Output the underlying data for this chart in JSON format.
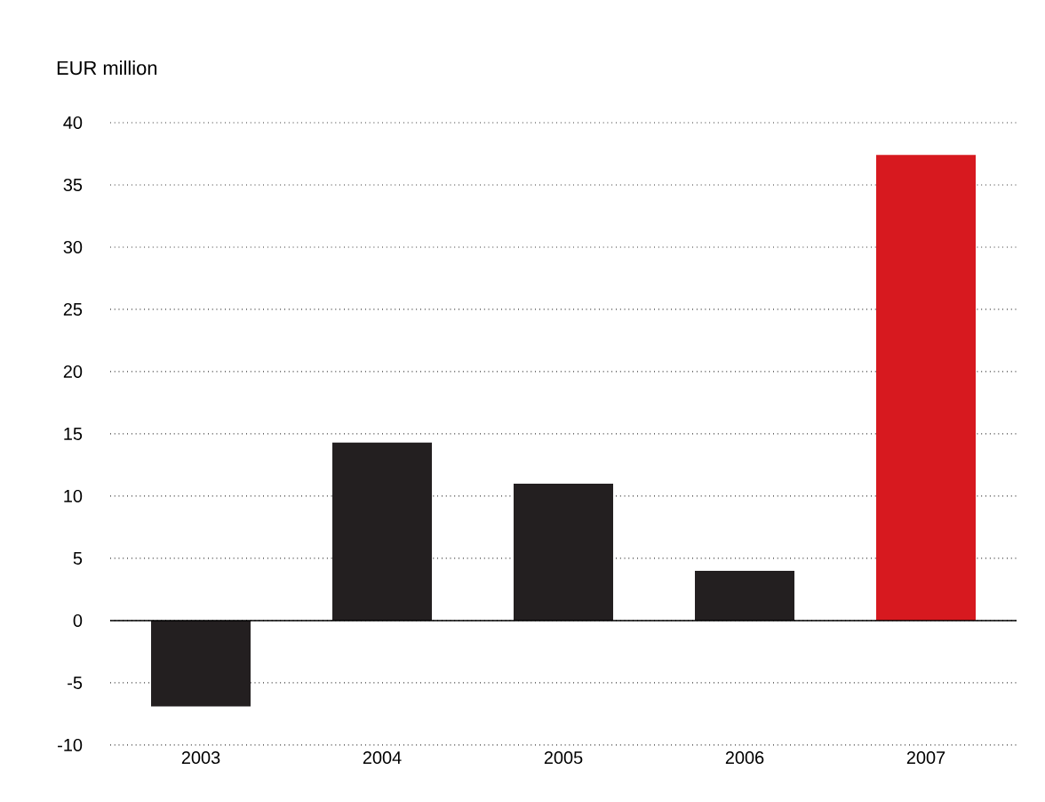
{
  "chart_data": {
    "type": "bar",
    "ylabel": "EUR million",
    "categories": [
      "2003",
      "2004",
      "2005",
      "2006",
      "2007"
    ],
    "values": [
      -6.9,
      14.3,
      11,
      4,
      37.4
    ],
    "colors": [
      "#231f20",
      "#231f20",
      "#231f20",
      "#231f20",
      "#d7191f"
    ],
    "ylim": [
      -10,
      40
    ],
    "yticks": [
      -10,
      -5,
      0,
      5,
      10,
      15,
      20,
      25,
      30,
      35,
      40
    ],
    "grid": "y"
  }
}
